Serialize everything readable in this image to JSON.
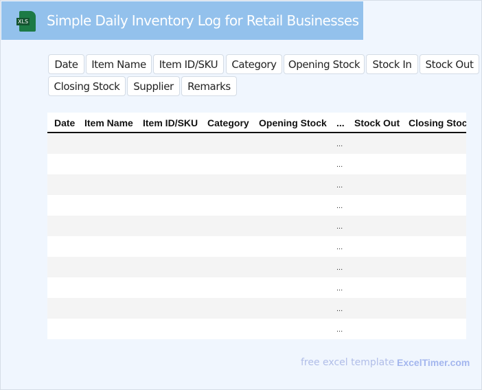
{
  "header": {
    "title": "Simple Daily Inventory Log for Retail Businesses",
    "logo_text": "XLS",
    "color": "#93c1ec"
  },
  "chips": [
    "Date",
    "Item Name",
    "Item ID/SKU",
    "Category",
    "Opening Stock",
    "Stock In",
    "Stock Out",
    "Closing Stock",
    "Supplier",
    "Remarks"
  ],
  "table": {
    "columns": [
      "Date",
      "Item Name",
      "Item ID/SKU",
      "Category",
      "Opening Stock",
      "...",
      "Stock Out",
      "Closing Stock"
    ],
    "rows": [
      "...",
      "...",
      "...",
      "...",
      "...",
      "...",
      "...",
      "...",
      "...",
      "..."
    ]
  },
  "footer": {
    "text": "free excel template -",
    "brand": "ExcelTimer.com"
  }
}
